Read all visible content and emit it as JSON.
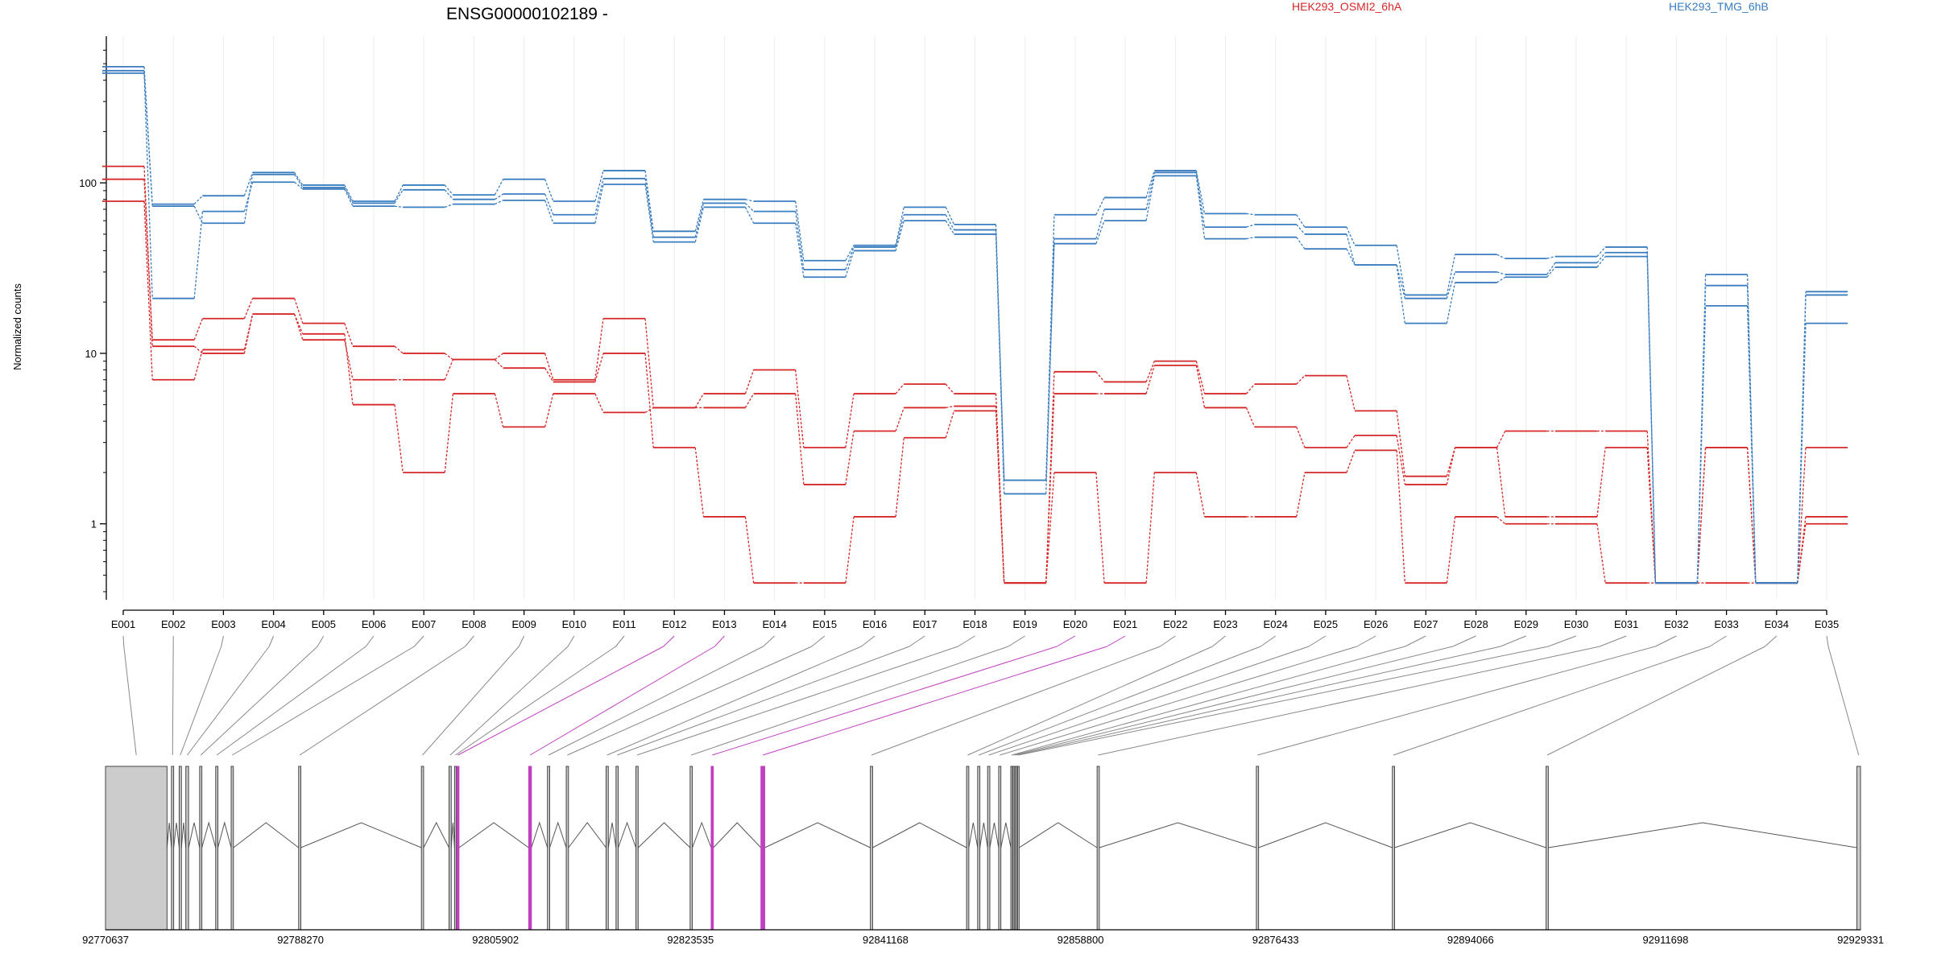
{
  "chart_data": {
    "type": "line",
    "title": "ENSG00000102189 -",
    "ylabel": "Normalized counts",
    "xlabel": "",
    "yscale": "log",
    "ylim": [
      0.4,
      650
    ],
    "yticks": [
      1,
      10,
      100
    ],
    "ytick_labels": [
      "1",
      "10",
      "100"
    ],
    "grid": "vertical",
    "legend_placement": "top",
    "categories": [
      "E001",
      "E002",
      "E003",
      "E004",
      "E005",
      "E006",
      "E007",
      "E008",
      "E009",
      "E010",
      "E011",
      "E012",
      "E013",
      "E014",
      "E015",
      "E016",
      "E017",
      "E018",
      "E019",
      "E020",
      "E021",
      "E022",
      "E023",
      "E024",
      "E025",
      "E026",
      "E027",
      "E028",
      "E029",
      "E030",
      "E031",
      "E032",
      "E033",
      "E034",
      "E035"
    ],
    "groups": [
      {
        "name": "HEK293_OSMI2_6hA",
        "color": "#d62728",
        "series": [
          {
            "values": [
              125,
              11,
              10,
              17,
              12,
              7,
              7,
              9.2,
              8.2,
              6.8,
              10,
              2.8,
              1.1,
              0.45,
              0.45,
              1.1,
              3.2,
              4.6,
              0.45,
              2,
              0.45,
              2,
              1.1,
              1.1,
              2,
              2.7,
              0.45,
              1.1,
              1,
              1,
              0.45,
              0.45,
              0.45,
              0.45,
              1
            ]
          },
          {
            "values": [
              105,
              12,
              16,
              21,
              15,
              11,
              10,
              9.2,
              10,
              7,
              16,
              4.8,
              4.8,
              5.8,
              1.7,
              3.5,
              4.8,
              4.9,
              0.45,
              5.8,
              5.8,
              8.5,
              4.8,
              3.7,
              2.8,
              3.3,
              1.7,
              2.8,
              3.5,
              3.5,
              3.5,
              0.45,
              2.8,
              0.45,
              1.1
            ]
          },
          {
            "values": [
              78,
              7,
              10.5,
              17,
              13,
              5,
              2,
              5.8,
              3.7,
              5.8,
              4.5,
              4.8,
              5.8,
              8,
              2.8,
              5.8,
              6.6,
              5.8,
              0.45,
              7.8,
              6.8,
              9,
              5.8,
              6.6,
              7.4,
              4.6,
              1.9,
              2.8,
              1.1,
              1.1,
              2.8,
              0.45,
              2.8,
              0.45,
              2.8
            ]
          }
        ]
      },
      {
        "name": "HEK293_TMG_6hB",
        "color": "#3a7dbf",
        "series": [
          {
            "values": [
              480,
              75,
              84,
              115,
              97,
              78,
              97,
              85,
              105,
              78,
              118,
              52,
              80,
              78,
              35,
              43,
              72,
              57,
              1.8,
              65,
              82,
              118,
              66,
              65,
              55,
              43,
              22,
              38,
              36,
              37,
              42,
              0.45,
              29,
              0.45,
              23
            ]
          },
          {
            "values": [
              455,
              73,
              58,
              112,
              94,
              76,
              91,
              80,
              86,
              65,
              106,
              48,
              76,
              68,
              31,
              42,
              65,
              53,
              1.5,
              47,
              70,
              115,
              55,
              57,
              50,
              33,
              21,
              30,
              29,
              34,
              39,
              0.45,
              25,
              0.45,
              22
            ]
          },
          {
            "values": [
              440,
              21,
              68,
              101,
              92,
              73,
              72,
              75,
              79,
              58,
              98,
              45,
              72,
              58,
              28,
              40,
              60,
              50,
              1.8,
              44,
              60,
              110,
              47,
              48,
              41,
              33,
              15,
              26,
              28,
              32,
              37,
              0.45,
              19,
              0.45,
              15
            ]
          }
        ]
      }
    ],
    "genomic_coordinate_labels": [
      "92770637",
      "92788270",
      "92805902",
      "92823535",
      "92841168",
      "92858800",
      "92876433",
      "92894066",
      "92911698",
      "92929331"
    ],
    "genomic_coordinate_range": [
      92770637,
      92929331
    ],
    "highlight_color": "#c040c0",
    "exon_fill_color": "#cccccc",
    "exons": [
      {
        "id": "E001",
        "start": 92770637,
        "end": 92776200,
        "highlight": false
      },
      {
        "id": "E002",
        "start": 92776600,
        "end": 92776800,
        "highlight": false
      },
      {
        "id": "E003",
        "start": 92777300,
        "end": 92777500,
        "highlight": false
      },
      {
        "id": "E004",
        "start": 92777900,
        "end": 92778150,
        "highlight": false
      },
      {
        "id": "E005",
        "start": 92779150,
        "end": 92779350,
        "highlight": false
      },
      {
        "id": "E006",
        "start": 92780600,
        "end": 92780800,
        "highlight": false
      },
      {
        "id": "E007",
        "start": 92782000,
        "end": 92782200,
        "highlight": false
      },
      {
        "id": "E008",
        "start": 92788100,
        "end": 92788300,
        "highlight": false
      },
      {
        "id": "E009",
        "start": 92799200,
        "end": 92799400,
        "highlight": false
      },
      {
        "id": "E010",
        "start": 92801700,
        "end": 92801900,
        "highlight": false
      },
      {
        "id": "E011",
        "start": 92802200,
        "end": 92802350,
        "highlight": false
      },
      {
        "id": "E012",
        "start": 92802400,
        "end": 92802600,
        "highlight": true
      },
      {
        "id": "E013",
        "start": 92808900,
        "end": 92809150,
        "highlight": true
      },
      {
        "id": "E014",
        "start": 92810600,
        "end": 92810800,
        "highlight": false
      },
      {
        "id": "E015",
        "start": 92812300,
        "end": 92812500,
        "highlight": false
      },
      {
        "id": "E016",
        "start": 92815900,
        "end": 92816100,
        "highlight": false
      },
      {
        "id": "E017",
        "start": 92816800,
        "end": 92817000,
        "highlight": false
      },
      {
        "id": "E018",
        "start": 92818600,
        "end": 92818800,
        "highlight": false
      },
      {
        "id": "E019",
        "start": 92823500,
        "end": 92823700,
        "highlight": false
      },
      {
        "id": "E020",
        "start": 92825400,
        "end": 92825600,
        "highlight": true
      },
      {
        "id": "E021",
        "start": 92829900,
        "end": 92830250,
        "highlight": true
      },
      {
        "id": "E022",
        "start": 92839800,
        "end": 92840000,
        "highlight": false
      },
      {
        "id": "E023",
        "start": 92848500,
        "end": 92848700,
        "highlight": false
      },
      {
        "id": "E024",
        "start": 92849500,
        "end": 92849700,
        "highlight": false
      },
      {
        "id": "E025",
        "start": 92850400,
        "end": 92850600,
        "highlight": false
      },
      {
        "id": "E026",
        "start": 92851400,
        "end": 92851600,
        "highlight": false
      },
      {
        "id": "E027",
        "start": 92852500,
        "end": 92852650,
        "highlight": false
      },
      {
        "id": "E028",
        "start": 92852700,
        "end": 92852850,
        "highlight": false
      },
      {
        "id": "E029",
        "start": 92852900,
        "end": 92853050,
        "highlight": false
      },
      {
        "id": "E030",
        "start": 92853100,
        "end": 92853250,
        "highlight": false
      },
      {
        "id": "E031",
        "start": 92860300,
        "end": 92860500,
        "highlight": false
      },
      {
        "id": "E032",
        "start": 92874700,
        "end": 92874900,
        "highlight": false
      },
      {
        "id": "E033",
        "start": 92887000,
        "end": 92887200,
        "highlight": false
      },
      {
        "id": "E034",
        "start": 92900900,
        "end": 92901100,
        "highlight": false
      },
      {
        "id": "E035",
        "start": 92929000,
        "end": 92929331,
        "highlight": false
      }
    ]
  }
}
